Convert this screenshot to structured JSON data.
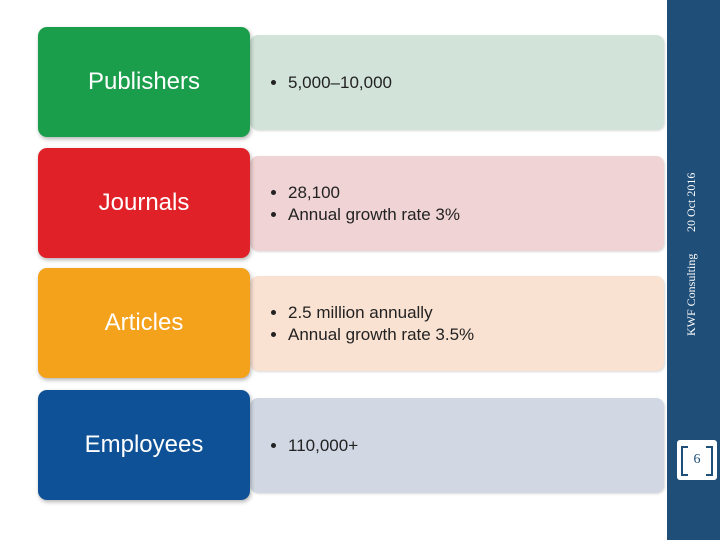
{
  "rows": [
    {
      "label": "Publishers",
      "bullets": [
        "5,000–10,000"
      ]
    },
    {
      "label": "Journals",
      "bullets": [
        "28,100",
        "Annual growth rate 3%"
      ]
    },
    {
      "label": "Articles",
      "bullets": [
        "2.5 million annually",
        "Annual growth rate 3.5%"
      ]
    },
    {
      "label": "Employees",
      "bullets": [
        "110,000+"
      ]
    }
  ],
  "footer": {
    "organization": "KWF Consulting",
    "date": "20 Oct 2016",
    "page_number": "6"
  }
}
